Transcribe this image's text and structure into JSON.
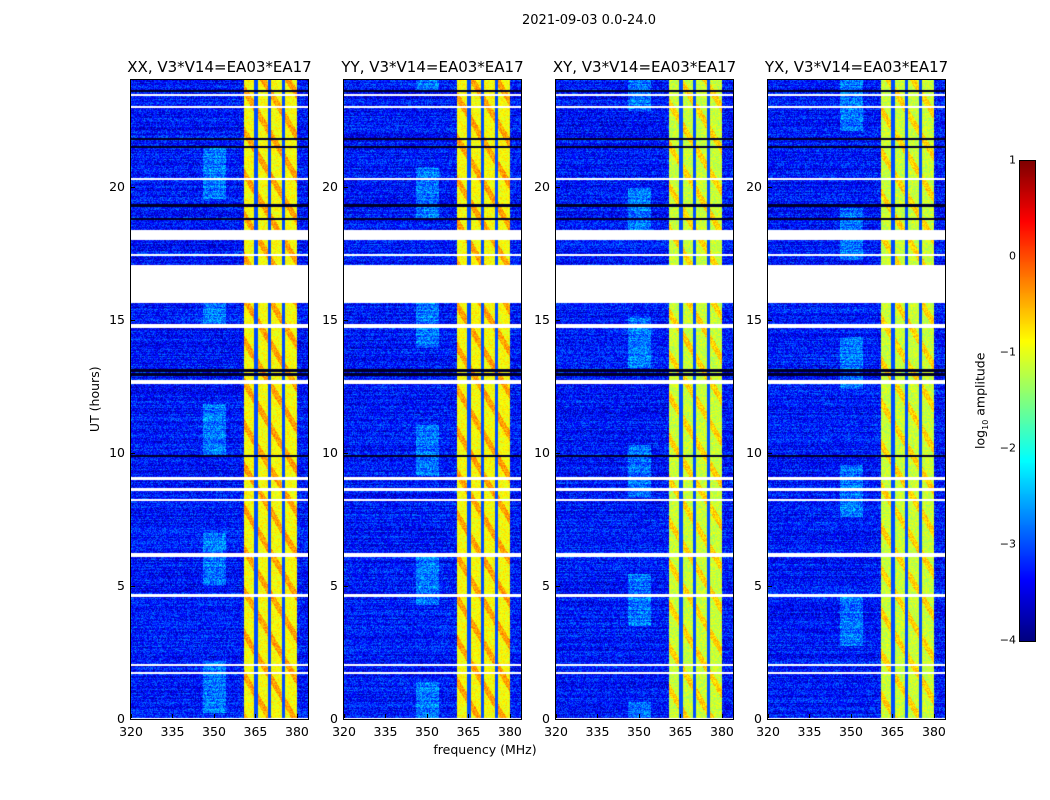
{
  "chart_data": {
    "type": "heatmap",
    "title": "2021-09-03 0.0-24.0",
    "xlabel": "frequency (MHz)",
    "ylabel": "UT (hours)",
    "xlim": [
      320,
      384
    ],
    "ylim": [
      0,
      24
    ],
    "xticks": [
      "320",
      "335",
      "350",
      "365",
      "380"
    ],
    "yticks": [
      "0",
      "5",
      "10",
      "15",
      "20"
    ],
    "panels": [
      {
        "title": "XX, V3*V14=EA03*EA17"
      },
      {
        "title": "YY, V3*V14=EA03*EA17"
      },
      {
        "title": "XY, V3*V14=EA03*EA17"
      },
      {
        "title": "YX, V3*V14=EA03*EA17"
      }
    ],
    "colorbar": {
      "label_prefix": "log",
      "label_sub": "10",
      "label_suffix": " amplitude",
      "colormap": "jet",
      "range": [
        -4,
        1
      ],
      "ticks": [
        "1",
        "0",
        "−1",
        "−2",
        "−3",
        "−4"
      ]
    },
    "background_level": -3.3,
    "bright_band_mhz": [
      360.5,
      380
    ],
    "bright_band_level": -0.9,
    "dark_channels_mhz": [
      365,
      370,
      375
    ],
    "flagged_hours": [
      [
        23.4,
        23.5
      ],
      [
        22.95,
        23.05
      ],
      [
        20.25,
        20.32
      ],
      [
        18.0,
        18.4
      ],
      [
        17.4,
        17.5
      ],
      [
        15.64,
        17.07
      ],
      [
        14.7,
        14.85
      ],
      [
        12.6,
        12.75
      ],
      [
        9.0,
        9.1
      ],
      [
        8.6,
        8.7
      ],
      [
        8.2,
        8.3
      ],
      [
        6.1,
        6.25
      ],
      [
        4.6,
        4.7
      ],
      [
        2.0,
        2.1
      ],
      [
        1.72,
        1.78
      ],
      [
        0.0,
        0.04
      ]
    ],
    "dark_rows_hours": [
      23.6,
      21.8,
      21.5,
      19.3,
      18.8,
      13.1,
      12.95,
      9.9
    ]
  }
}
